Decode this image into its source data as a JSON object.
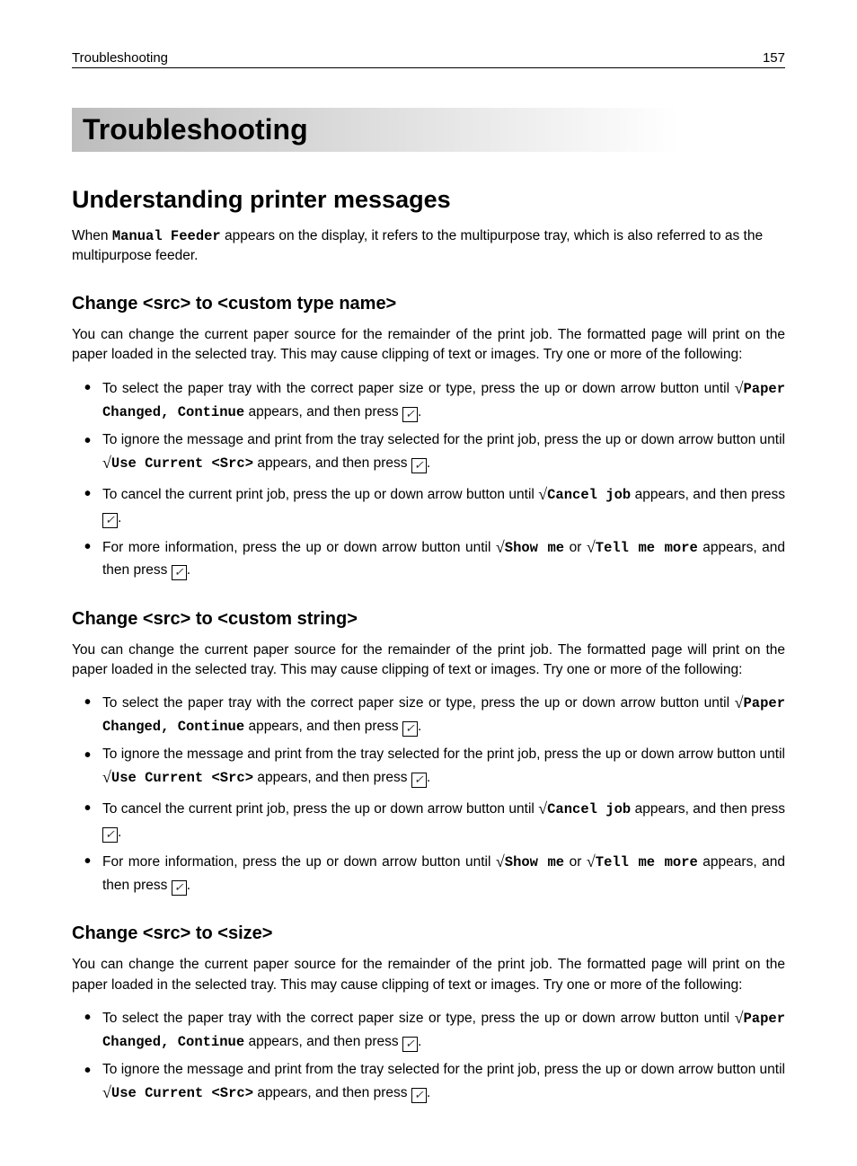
{
  "header": {
    "section": "Troubleshooting",
    "page_number": "157"
  },
  "chapter_title": "Troubleshooting",
  "h2": "Understanding printer messages",
  "intro_prefix": "When ",
  "intro_mono": "Manual Feeder",
  "intro_suffix": " appears on the display, it refers to the multipurpose tray, which is also referred to as the multipurpose feeder.",
  "sections": [
    {
      "title": "Change <src> to <custom type name>",
      "intro": "You can change the current paper source for the remainder of the print job. The formatted page will print on the paper loaded in the selected tray. This may cause clipping of text or images. Try one or more of the following:",
      "bullets": [
        "b1",
        "b2",
        "b3",
        "b4"
      ]
    },
    {
      "title": "Change <src> to <custom string>",
      "intro": "You can change the current paper source for the remainder of the print job. The formatted page will print on the paper loaded in the selected tray. This may cause clipping of text or images. Try one or more of the following:",
      "bullets": [
        "b1",
        "b2",
        "b3",
        "b4"
      ]
    },
    {
      "title": "Change <src> to <size>",
      "intro": "You can change the current paper source for the remainder of the print job. The formatted page will print on the paper loaded in the selected tray. This may cause clipping of text or images. Try one or more of the following:",
      "bullets": [
        "b1",
        "b2"
      ]
    }
  ],
  "strings": {
    "b1_pre": "To select the paper tray with the correct paper size or type, press the up or down arrow button until ",
    "b1_mono": "Paper Changed, Continue",
    "b1_post": " appears, and then press ",
    "b2_pre": "To ignore the message and print from the tray selected for the print job, press the up or down arrow button until ",
    "b2_mono": "Use Current <Src>",
    "b2_post": " appears, and then press ",
    "b3_pre": "To cancel the current print job, press the up or down arrow button until ",
    "b3_mono": "Cancel job",
    "b3_post": " appears, and then press ",
    "b4_pre": "For more information, press the up or down arrow button until ",
    "b4_mono_a": "Show me",
    "b4_mid": " or ",
    "b4_mono_b": "Tell me more",
    "b4_post": " appears, and then press ",
    "period": ".",
    "sqrt": "√",
    "check": "✓"
  }
}
